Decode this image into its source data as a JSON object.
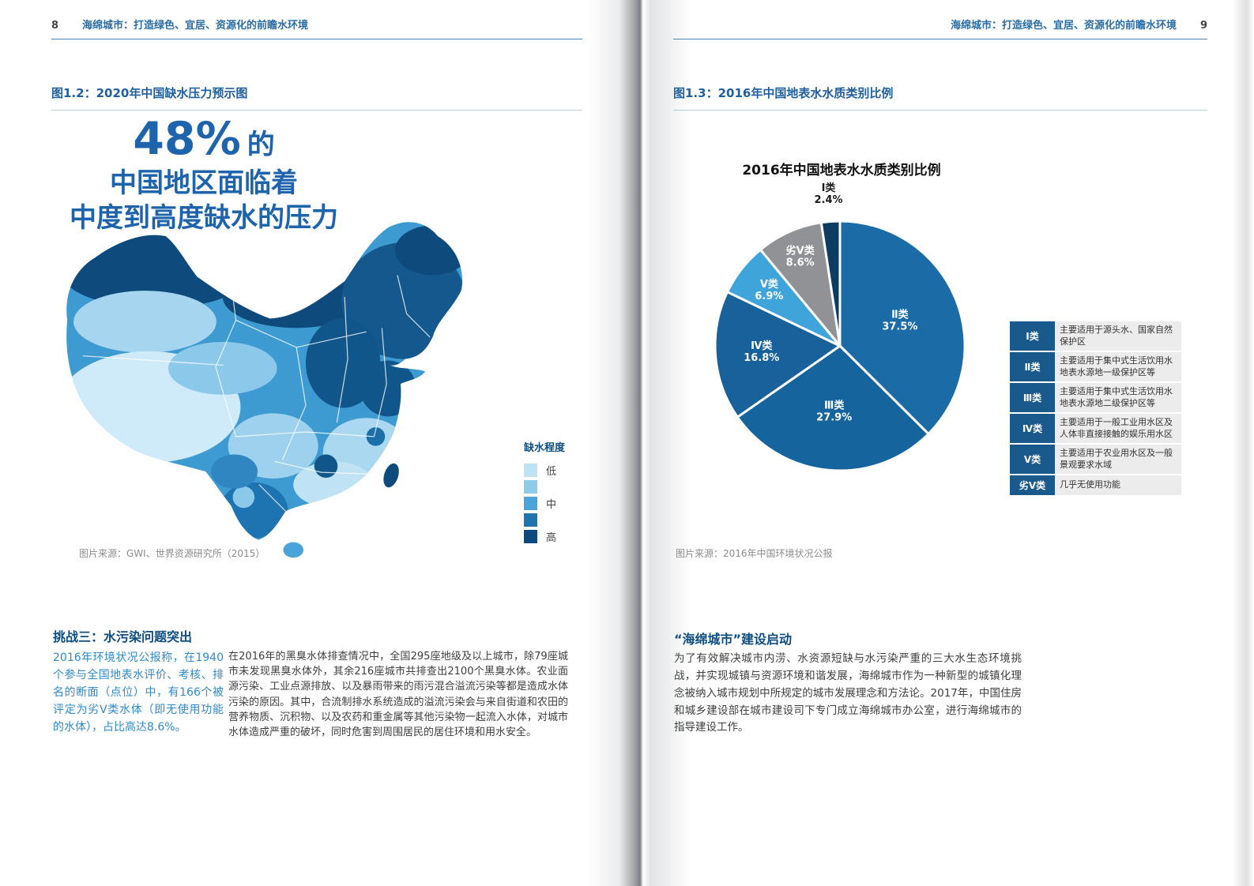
{
  "colors": {
    "header_blue": "#2a6da4",
    "accent_blue": "#1d64ad",
    "section_heading_blue": "#0e4d80",
    "highlight_text_blue": "#2f8ac9",
    "body_text": "#3d3d3d",
    "source_gray": "#8b8b8b",
    "figure_rule_blue": "#b7cede",
    "legend_label_bg": "#19598c",
    "legend_desc_bg": "#ececec"
  },
  "left_page": {
    "page_number": "8",
    "header_title": "海绵城市：打造绿色、宜居、资源化的前瞻水环境",
    "figure_title": "图1.2：2020年中国缺水压力预示图",
    "headline": {
      "percent": "48%",
      "percent_suffix": "的",
      "line2": "中国地区面临着",
      "line3": "中度到高度缺水的压力"
    },
    "map_legend": {
      "title": "缺水程度",
      "items": [
        {
          "color": "#bfe3f5",
          "label": "低"
        },
        {
          "color": "#8fcbea",
          "label": ""
        },
        {
          "color": "#49a5d9",
          "label": "中"
        },
        {
          "color": "#1f74b0",
          "label": ""
        },
        {
          "color": "#0d4b7e",
          "label": "高"
        }
      ]
    },
    "source": "图片来源：GWI、世界资源研究所（2015）",
    "section_title": "挑战三：水污染问题突出",
    "highlight_paragraph": "2016年环境状况公报称，在1940个参与全国地表水评价、考核、排名的断面（点位）中，有166个被评定为劣Ⅴ类水体（即无使用功能的水体），占比高达8.6%。",
    "body_paragraph": "在2016年的黑臭水体排查情况中，全国295座地级及以上城市，除79座城市未发现黑臭水体外，其余216座城市共排查出2100个黑臭水体。农业面源污染、工业点源排放、以及暴雨带来的雨污混合溢流污染等都是造成水体污染的原因。其中，合流制排水系统造成的溢流污染会与来自街道和农田的营养物质、沉积物、以及农药和重金属等其他污染物一起流入水体，对城市水体造成严重的破坏，同时危害到周围居民的居住环境和用水安全。"
  },
  "right_page": {
    "page_number": "9",
    "header_title": "海绵城市：打造绿色、宜居、资源化的前瞻水环境",
    "figure_title": "图1.3：2016年中国地表水水质类别比例",
    "chart_title": "2016年中国地表水水质类别比例",
    "source": "图片来源：2016年中国环境状况公报",
    "section_title": "“海绵城市”建设启动",
    "body_paragraph": "为了有效解决城市内涝、水资源短缺与水污染严重的三大水生态环境挑战，并实现城镇与资源环境和谐发展，海绵城市作为一种新型的城镇化理念被纳入城市规划中所规定的城市发展理念和方法论。2017年，中国住房和城乡建设部在城市建设司下专门成立海绵城市办公室，进行海绵城市的指导建设工作。",
    "legend_table": [
      {
        "label": "Ⅰ类",
        "desc": "主要适用于源头水、国家自然保护区"
      },
      {
        "label": "Ⅱ类",
        "desc": "主要适用于集中式生活饮用水地表水源地一级保护区等"
      },
      {
        "label": "Ⅲ类",
        "desc": "主要适用于集中式生活饮用水地表水源地二级保护区等"
      },
      {
        "label": "Ⅳ类",
        "desc": "主要适用于一般工业用水区及人体非直接接触的娱乐用水区"
      },
      {
        "label": "Ⅴ类",
        "desc": "主要适用于农业用水区及一般景观要求水域"
      },
      {
        "label": "劣Ⅴ类",
        "desc": "几乎无使用功能"
      }
    ]
  },
  "chart_data": {
    "type": "pie",
    "title": "2016年中国地表水水质类别比例",
    "unit": "percent",
    "direction": "clockwise",
    "start_angle": "12-oclock",
    "slices": [
      {
        "label": "Ⅱ类",
        "value": 37.5,
        "color": "#1a6ba6"
      },
      {
        "label": "Ⅲ类",
        "value": 27.9,
        "color": "#15649e"
      },
      {
        "label": "Ⅳ类",
        "value": 16.8,
        "color": "#19619a"
      },
      {
        "label": "Ⅴ类",
        "value": 6.9,
        "color": "#3ea4da"
      },
      {
        "label": "劣Ⅴ类",
        "value": 8.6,
        "color": "#909295"
      },
      {
        "label": "Ⅰ类",
        "value": 2.4,
        "color": "#0d3c63"
      }
    ],
    "legend_position": "right"
  }
}
